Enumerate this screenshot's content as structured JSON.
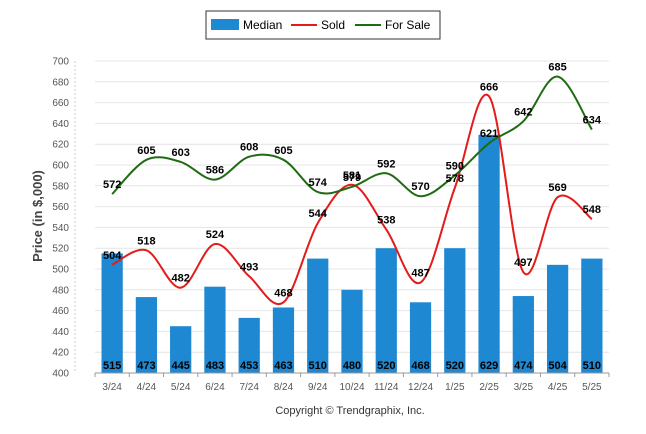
{
  "chart_data": {
    "type": "bar",
    "categories": [
      "3/24",
      "4/24",
      "5/24",
      "6/24",
      "7/24",
      "8/24",
      "9/24",
      "10/24",
      "11/24",
      "12/24",
      "1/25",
      "2/25",
      "3/25",
      "4/25",
      "5/25"
    ],
    "ylabel": "Price (in $,000)",
    "ylim": [
      400,
      700
    ],
    "yticks": [
      400,
      420,
      440,
      460,
      480,
      500,
      520,
      540,
      560,
      580,
      600,
      620,
      640,
      660,
      680,
      700
    ],
    "grid": true,
    "legend": "top-center",
    "series": [
      {
        "name": "Median",
        "type": "bar",
        "color": "#1f88d2",
        "values": [
          515,
          473,
          445,
          483,
          453,
          463,
          510,
          480,
          520,
          468,
          520,
          629,
          474,
          504,
          510
        ]
      },
      {
        "name": "Sold",
        "type": "line",
        "color": "#e31b1b",
        "values": [
          504,
          518,
          482,
          524,
          493,
          468,
          544,
          581,
          538,
          487,
          578,
          666,
          497,
          569,
          548
        ]
      },
      {
        "name": "For Sale",
        "type": "line",
        "color": "#1f6b12",
        "values": [
          572,
          605,
          603,
          586,
          608,
          605,
          574,
          579,
          592,
          570,
          590,
          621,
          642,
          685,
          634
        ]
      }
    ]
  },
  "footer": {
    "copyright": "Copyright © Trendgraphix, Inc."
  }
}
